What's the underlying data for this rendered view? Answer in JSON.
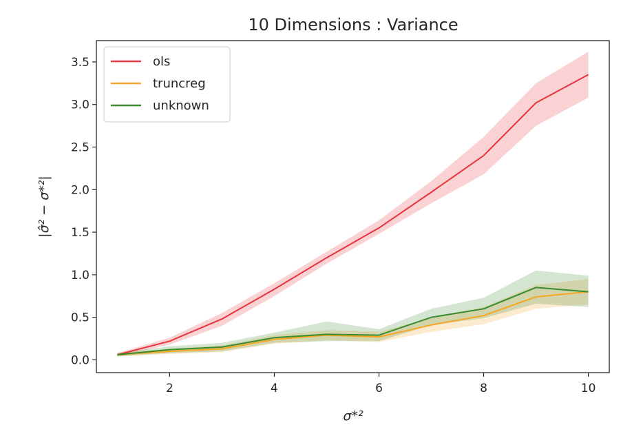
{
  "chart_data": {
    "type": "line",
    "title": "10 Dimensions : Variance",
    "xlabel": "σ*²",
    "ylabel": "|σ̂² − σ*²|",
    "xlim": [
      0.6,
      10.4
    ],
    "ylim": [
      -0.15,
      3.75
    ],
    "xticks": [
      2,
      4,
      6,
      8,
      10
    ],
    "yticks": [
      0.0,
      0.5,
      1.0,
      1.5,
      2.0,
      2.5,
      3.0,
      3.5
    ],
    "ytick_labels": [
      "0.0",
      "0.5",
      "1.0",
      "1.5",
      "2.0",
      "2.5",
      "3.0",
      "3.5"
    ],
    "xtick_labels": [
      "2",
      "4",
      "6",
      "8",
      "10"
    ],
    "legend_position": "top-left",
    "grid": false,
    "x": [
      1,
      2,
      3,
      4,
      5,
      6,
      7,
      8,
      9,
      10
    ],
    "series": [
      {
        "name": "ols",
        "color": "#e8333c",
        "values": [
          0.06,
          0.22,
          0.48,
          0.83,
          1.2,
          1.55,
          1.97,
          2.4,
          3.02,
          3.35
        ],
        "lower": [
          0.04,
          0.18,
          0.4,
          0.75,
          1.13,
          1.48,
          1.84,
          2.18,
          2.75,
          3.08
        ],
        "upper": [
          0.08,
          0.26,
          0.55,
          0.9,
          1.27,
          1.64,
          2.1,
          2.62,
          3.25,
          3.62
        ]
      },
      {
        "name": "truncreg",
        "color": "#f5a623",
        "values": [
          0.06,
          0.1,
          0.13,
          0.24,
          0.29,
          0.27,
          0.41,
          0.52,
          0.74,
          0.8
        ],
        "lower": [
          0.04,
          0.07,
          0.09,
          0.19,
          0.23,
          0.21,
          0.33,
          0.42,
          0.6,
          0.65
        ],
        "upper": [
          0.08,
          0.13,
          0.17,
          0.29,
          0.35,
          0.33,
          0.49,
          0.62,
          0.88,
          0.95
        ]
      },
      {
        "name": "unknown",
        "color": "#3a8a2e",
        "values": [
          0.06,
          0.12,
          0.15,
          0.26,
          0.3,
          0.29,
          0.5,
          0.6,
          0.85,
          0.8
        ],
        "lower": [
          0.04,
          0.08,
          0.1,
          0.2,
          0.22,
          0.22,
          0.41,
          0.49,
          0.66,
          0.62
        ],
        "upper": [
          0.08,
          0.16,
          0.2,
          0.32,
          0.45,
          0.36,
          0.6,
          0.73,
          1.05,
          0.99
        ]
      }
    ]
  }
}
